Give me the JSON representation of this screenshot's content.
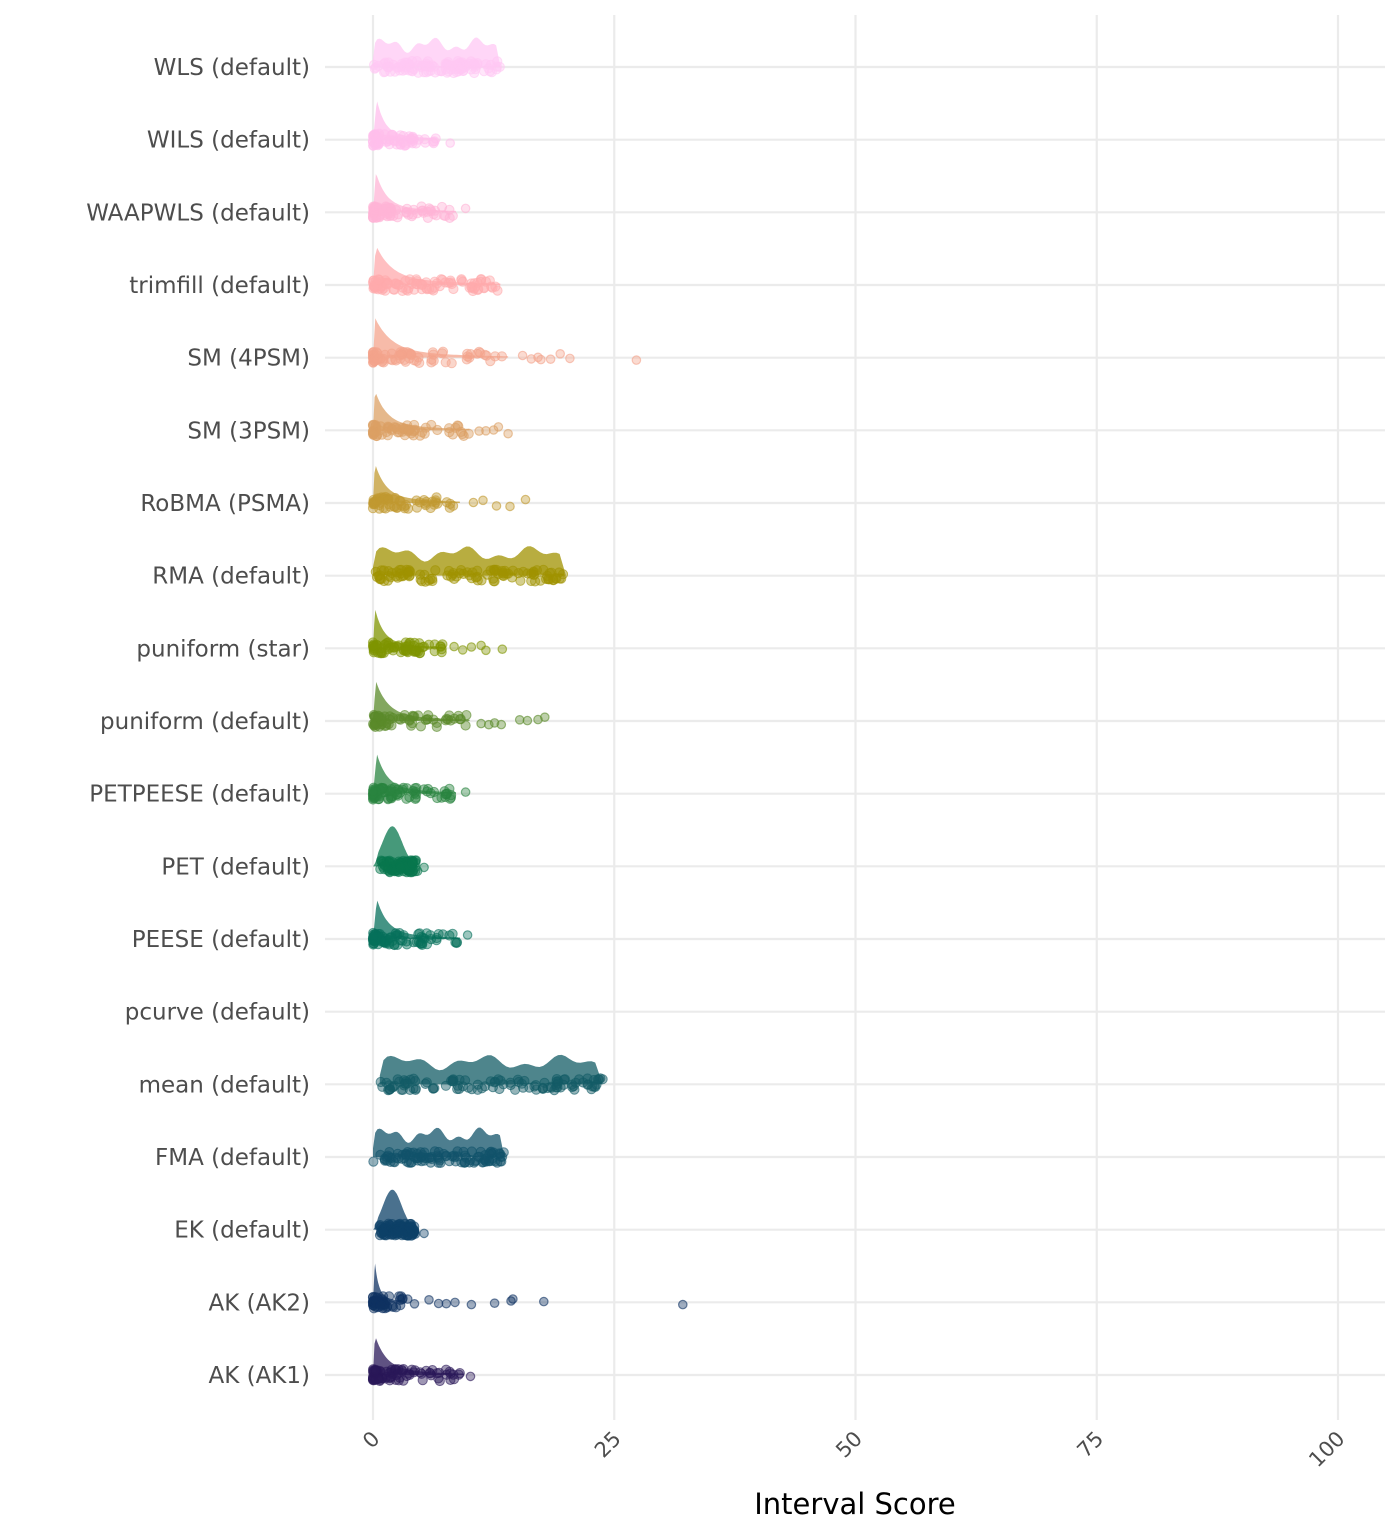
{
  "chart_data": {
    "type": "raincloud",
    "xlabel": "Interval Score",
    "ylabel": "",
    "xlim": [
      0,
      100
    ],
    "xticks": [
      0,
      25,
      50,
      75,
      100
    ],
    "grid": true,
    "legend": "none",
    "categories": [
      {
        "name": "WLS (default)",
        "color": "#FFC8F4",
        "range": [
          0,
          13.2
        ],
        "peak": 0.5,
        "shape": "flat",
        "density": 1.0,
        "outliers": []
      },
      {
        "name": "WILS (default)",
        "color": "#FFBEEC",
        "range": [
          0,
          6.6
        ],
        "peak": 0.4,
        "shape": "skew",
        "density": 0.55,
        "outliers": [
          8.0
        ]
      },
      {
        "name": "WAAPWLS (default)",
        "color": "#FFB4D6",
        "range": [
          0,
          8.6
        ],
        "peak": 0.3,
        "shape": "skew",
        "density": 0.7,
        "outliers": [
          9.6
        ]
      },
      {
        "name": "trimfill (default)",
        "color": "#FFAAAC",
        "range": [
          0,
          13.2
        ],
        "peak": 0.3,
        "shape": "skew",
        "density": 0.9,
        "outliers": []
      },
      {
        "name": "SM (4PSM)",
        "color": "#F4A48C",
        "range": [
          0,
          14.0
        ],
        "peak": 0.2,
        "shape": "skew",
        "density": 0.7,
        "outliers": [
          15.5,
          16.4,
          17.1,
          17.4,
          18.4,
          19.4,
          20.4,
          27.3
        ]
      },
      {
        "name": "SM (3PSM)",
        "color": "#DCA064",
        "range": [
          0,
          10.0
        ],
        "peak": 0.2,
        "shape": "skew",
        "density": 0.6,
        "outliers": [
          11.0,
          11.7,
          12.5,
          13.0,
          14.0
        ]
      },
      {
        "name": "RoBMA (PSMA)",
        "color": "#C29A30",
        "range": [
          0,
          9.0
        ],
        "peak": 0.2,
        "shape": "skew",
        "density": 0.55,
        "outliers": [
          10.4,
          11.4,
          12.8,
          14.2,
          15.8
        ]
      },
      {
        "name": "RMA (default)",
        "color": "#A09200",
        "range": [
          0,
          20.0
        ],
        "peak": 0.3,
        "shape": "flat",
        "density": 1.0,
        "outliers": []
      },
      {
        "name": "puniform (star)",
        "color": "#7F9400",
        "range": [
          0,
          7.2
        ],
        "peak": 0.2,
        "shape": "skew",
        "density": 0.6,
        "outliers": [
          8.4,
          9.3,
          10.2,
          11.2,
          11.7,
          13.4
        ]
      },
      {
        "name": "puniform (default)",
        "color": "#5A8A2A",
        "range": [
          0,
          10.0
        ],
        "peak": 0.3,
        "shape": "skew",
        "density": 0.6,
        "outliers": [
          11.2,
          12.0,
          12.6,
          13.3,
          15.2,
          16.0,
          17.1,
          17.8
        ]
      },
      {
        "name": "PETPEESE (default)",
        "color": "#2A8440",
        "range": [
          0,
          8.6
        ],
        "peak": 0.4,
        "shape": "skew",
        "density": 0.75,
        "outliers": [
          9.6
        ]
      },
      {
        "name": "PET (default)",
        "color": "#08774E",
        "range": [
          0,
          4.6
        ],
        "peak": 2.0,
        "shape": "bump",
        "density": 0.9,
        "outliers": [
          5.3
        ]
      },
      {
        "name": "PEESE (default)",
        "color": "#07705C",
        "range": [
          0,
          9.0
        ],
        "peak": 0.4,
        "shape": "skew",
        "density": 0.75,
        "outliers": [
          9.8
        ]
      },
      {
        "name": "pcurve (default)",
        "color": "#0B6460",
        "range": null,
        "peak": null,
        "shape": "none",
        "density": 0,
        "outliers": []
      },
      {
        "name": "mean (default)",
        "color": "#135C66",
        "range": [
          0.7,
          23.8
        ],
        "peak": 1.0,
        "shape": "flat",
        "density": 1.0,
        "outliers": []
      },
      {
        "name": "FMA (default)",
        "color": "#11536A",
        "range": [
          0,
          13.6
        ],
        "peak": 0.4,
        "shape": "flat",
        "density": 1.0,
        "outliers": []
      },
      {
        "name": "EK (default)",
        "color": "#0E4168",
        "range": [
          0,
          4.4
        ],
        "peak": 2.0,
        "shape": "bump",
        "density": 0.9,
        "outliers": [
          5.3
        ]
      },
      {
        "name": "AK (AK2)",
        "color": "#0F3262",
        "range": [
          0,
          3.2
        ],
        "peak": 0.2,
        "shape": "skew",
        "density": 0.55,
        "outliers": [
          3.6,
          4.3,
          5.8,
          6.8,
          7.6,
          8.5,
          10.2,
          12.6,
          14.3,
          14.5,
          17.7,
          32.1
        ]
      },
      {
        "name": "AK (AK1)",
        "color": "#2A1858",
        "range": [
          0,
          9.4
        ],
        "peak": 0.2,
        "shape": "skew",
        "density": 0.75,
        "outliers": [
          10.1
        ]
      }
    ]
  }
}
